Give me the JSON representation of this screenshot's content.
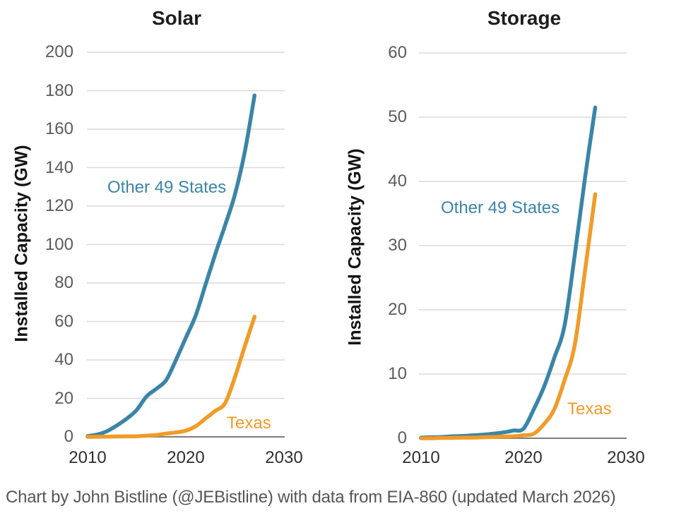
{
  "caption": "Chart by John Bistline (@JEBistline) with data from EIA-860 (updated March 2026)",
  "colors": {
    "other_states": "#3A85A8",
    "texas": "#F19B28",
    "grid": "#DADADA",
    "axis": "#7E7E7E"
  },
  "charts": [
    {
      "id": "solar",
      "chart_data": {
        "type": "line",
        "title": "Solar",
        "ylabel": "Installed Capacity (GW)",
        "xlabel": "",
        "ylim": [
          0,
          200
        ],
        "yticks": [
          0,
          20,
          40,
          60,
          80,
          100,
          120,
          140,
          160,
          180,
          200
        ],
        "xlim": [
          2010,
          2030
        ],
        "xticks": [
          2010,
          2020,
          2030
        ],
        "grid": "horizontal",
        "legend": "inline-annotations",
        "x": [
          2010,
          2011,
          2012,
          2013,
          2014,
          2015,
          2016,
          2017,
          2018,
          2019,
          2020,
          2021,
          2022,
          2023,
          2024,
          2025,
          2026,
          2027
        ],
        "series": [
          {
            "name": "Other 49 States",
            "color_key": "other_states",
            "values": [
              0.4,
              1.2,
              3,
              6,
              9.5,
              14,
              21,
              25,
              29.5,
              40,
              51.5,
              63,
              79,
              95,
              110,
              126,
              148,
              177.5
            ]
          },
          {
            "name": "Texas",
            "color_key": "texas",
            "values": [
              0,
              0.05,
              0.1,
              0.2,
              0.25,
              0.3,
              0.6,
              1,
              1.7,
              2.3,
              3.2,
              5.5,
              9.5,
              13.5,
              17.5,
              31,
              47,
              62.5
            ]
          }
        ]
      }
    },
    {
      "id": "storage",
      "chart_data": {
        "type": "line",
        "title": "Storage",
        "ylabel": "Installed Capacity (GW)",
        "xlabel": "",
        "ylim": [
          0,
          60
        ],
        "yticks": [
          0,
          10,
          20,
          30,
          40,
          50,
          60
        ],
        "xlim": [
          2010,
          2030
        ],
        "xticks": [
          2010,
          2020,
          2030
        ],
        "grid": "horizontal",
        "legend": "inline-annotations",
        "x": [
          2010,
          2011,
          2012,
          2013,
          2014,
          2015,
          2016,
          2017,
          2018,
          2019,
          2020,
          2021,
          2022,
          2023,
          2024,
          2025,
          2026,
          2027
        ],
        "series": [
          {
            "name": "Other 49 States",
            "color_key": "other_states",
            "values": [
              0.1,
              0.15,
              0.2,
              0.3,
              0.35,
              0.45,
              0.55,
              0.7,
              0.9,
              1.2,
              1.5,
              4.5,
              8,
              12.5,
              17.5,
              28.5,
              40.5,
              51.5
            ]
          },
          {
            "name": "Texas",
            "color_key": "texas",
            "values": [
              0,
              0,
              0.05,
              0.05,
              0.1,
              0.1,
              0.15,
              0.2,
              0.25,
              0.3,
              0.45,
              0.7,
              2.2,
              4.5,
              9,
              14.5,
              26,
              38
            ]
          }
        ]
      }
    }
  ]
}
